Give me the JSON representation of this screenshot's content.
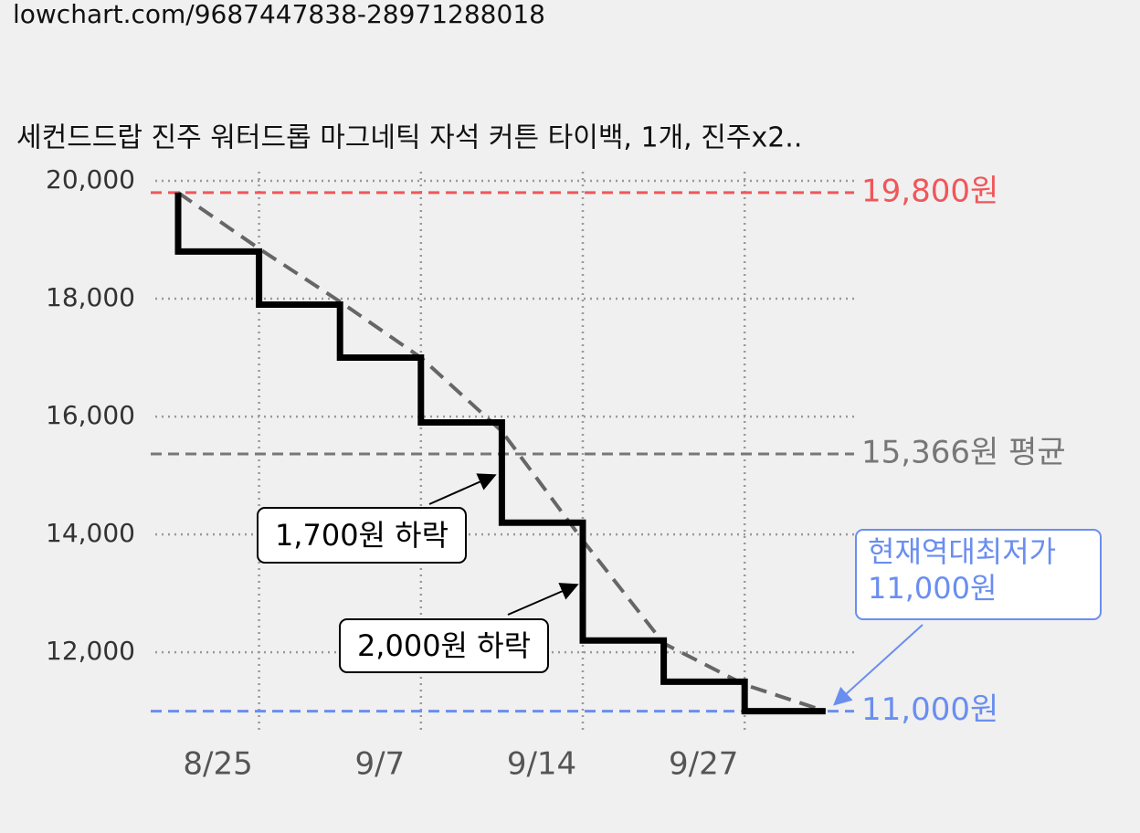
{
  "url": "lowchart.com/9687447838-28971288018",
  "chart_data": {
    "type": "step-line",
    "title": "세컨드드랍 진주 워터드롭 마그네틱 자석 커튼 타이백, 1개, 진주x2..",
    "categories": [
      null,
      "8/25",
      null,
      "9/7",
      null,
      "9/14",
      null,
      "9/27",
      null
    ],
    "series": [
      {
        "color": "#000000",
        "values": [
          19800,
          18800,
          17900,
          17000,
          15900,
          14200,
          12200,
          11500,
          11000
        ]
      },
      {
        "color": "#666666",
        "dashed": true,
        "values": [
          19800,
          18850,
          17950,
          17000,
          15750,
          13900,
          12150,
          11450,
          11000
        ]
      }
    ],
    "ylim": [
      10700,
      20000
    ],
    "yticks": [
      {
        "value": 20000,
        "label": "20,000"
      },
      {
        "value": 18000,
        "label": "18,000"
      },
      {
        "value": 16000,
        "label": "16,000"
      },
      {
        "value": 14000,
        "label": "14,000"
      },
      {
        "value": 12000,
        "label": "12,000"
      }
    ],
    "grid": true,
    "reference_lines": [
      {
        "value": 19800,
        "label": "19,800원",
        "color": "#f0565a"
      },
      {
        "value": 15366,
        "label": "15,366원 평균",
        "color": "#777777"
      },
      {
        "value": 11000,
        "label": "11,000원",
        "color": "#6a8ef0"
      }
    ],
    "annotations": [
      {
        "text": "1,700원 하락",
        "from": 15900,
        "to": 14200
      },
      {
        "text": "2,000원 하락",
        "from": 14200,
        "to": 12200
      }
    ],
    "callout": {
      "lines": [
        "현재역대최저가",
        "11,000원"
      ],
      "color": "#6a8ef0"
    }
  }
}
